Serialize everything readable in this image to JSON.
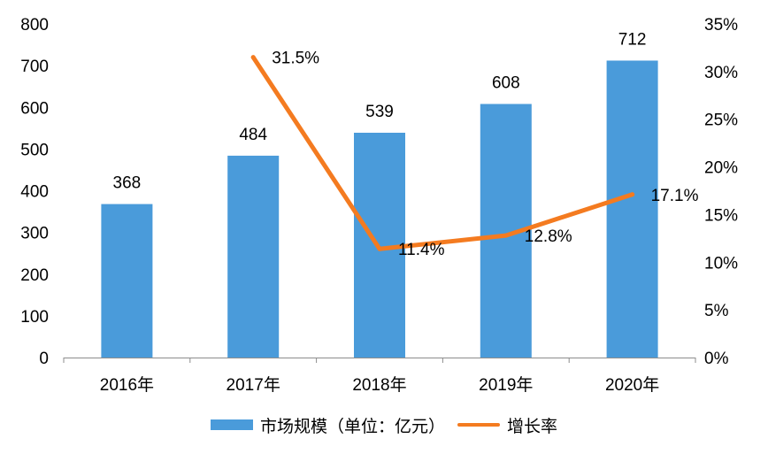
{
  "chart_data": {
    "type": "bar",
    "categories": [
      "2016年",
      "2017年",
      "2018年",
      "2019年",
      "2020年"
    ],
    "series": [
      {
        "name": "市场规模（单位：亿元）",
        "type": "bar",
        "axis": "left",
        "color": "#4a9bda",
        "values": [
          368,
          484,
          539,
          608,
          712
        ],
        "labels": [
          "368",
          "484",
          "539",
          "608",
          "712"
        ]
      },
      {
        "name": "增长率",
        "type": "line",
        "axis": "right",
        "color": "#f47b20",
        "values": [
          null,
          31.5,
          11.4,
          12.8,
          17.1
        ],
        "labels": [
          "",
          "31.5%",
          "11.4%",
          "12.8%",
          "17.1%"
        ]
      }
    ],
    "y_left": {
      "ylim": [
        0,
        800
      ],
      "ticks": [
        "0",
        "100",
        "200",
        "300",
        "400",
        "500",
        "600",
        "700",
        "800"
      ]
    },
    "y_right": {
      "ylim": [
        0,
        35
      ],
      "ticks": [
        "0%",
        "5%",
        "10%",
        "15%",
        "20%",
        "25%",
        "30%",
        "35%"
      ]
    },
    "grid": false,
    "legend_position": "bottom"
  }
}
